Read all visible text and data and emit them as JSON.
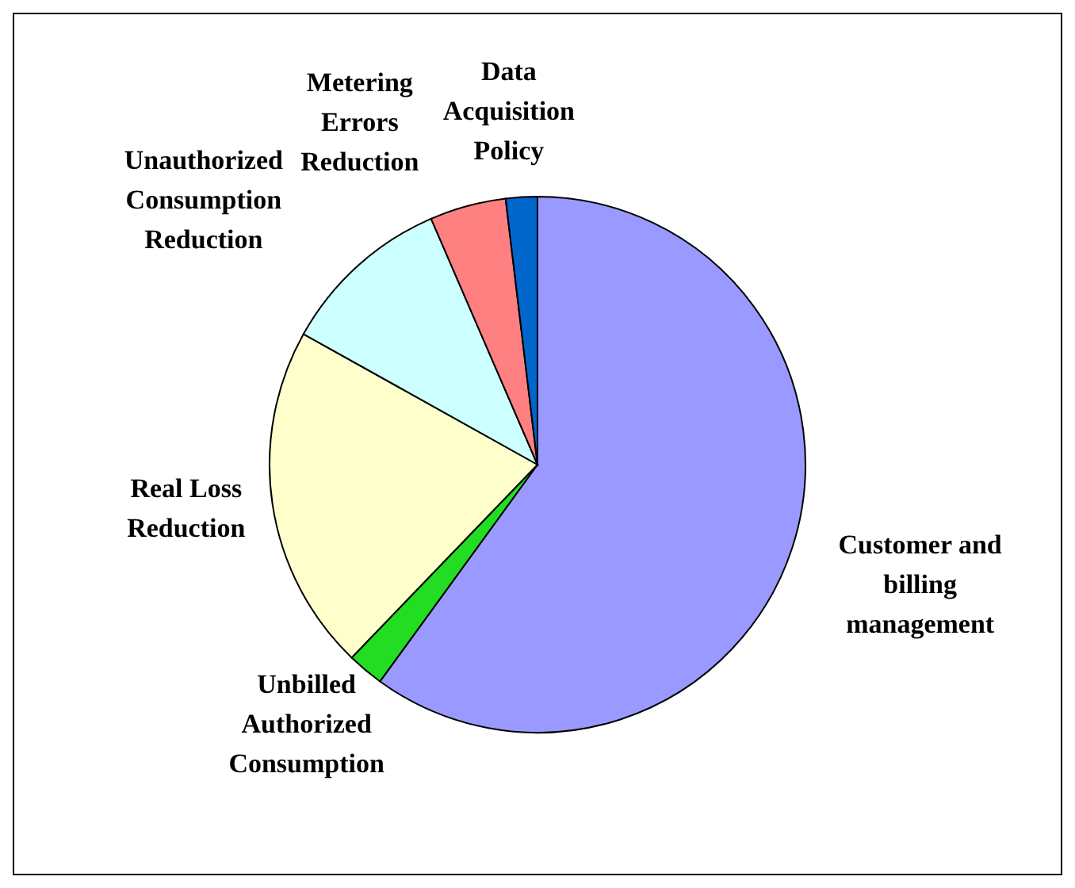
{
  "chart_data": {
    "type": "pie",
    "categories": [
      "Customer and billing management",
      "Unbilled Authorized Consumption",
      "Real Loss Reduction",
      "Unauthorized Consumption Reduction",
      "Metering Errors Reduction",
      "Data Acquisition Policy"
    ],
    "values": [
      60,
      2.2,
      20.9,
      10.4,
      4.6,
      1.9
    ],
    "colors": [
      "#9999ff",
      "#22dd22",
      "#ffffcc",
      "#ccffff",
      "#ff8080",
      "#0066cc"
    ],
    "legend": false
  }
}
